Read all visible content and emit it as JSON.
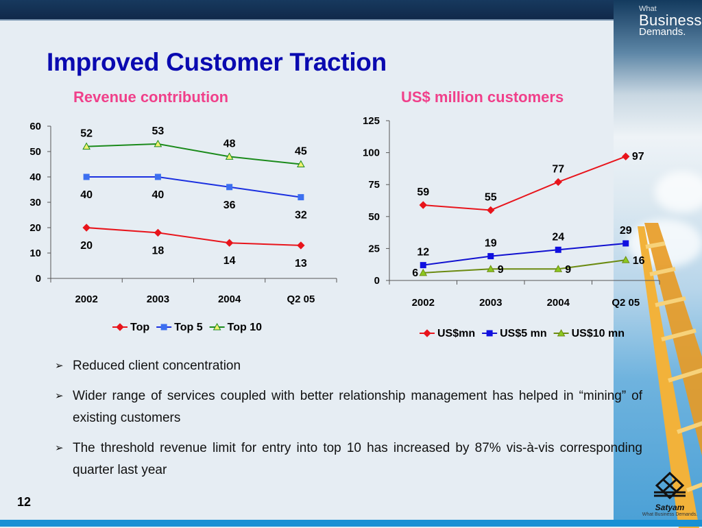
{
  "slide": {
    "title": "Improved  Customer Traction",
    "page_number": "12",
    "brand": {
      "line1": "What",
      "line2": "Business",
      "line3": "Demands."
    },
    "logo": {
      "name": "Satyam",
      "tagline": "What Business Demands."
    },
    "bullets": [
      "Reduced client concentration",
      "Wider range of services coupled with better relationship management has helped in “mining” of existing customers",
      "The threshold revenue limit for entry into top 10 has increased by 87% vis-à-vis corresponding quarter last year"
    ],
    "bullet_glyph": "➢"
  },
  "chart_data": [
    {
      "type": "line",
      "title": "Revenue contribution",
      "title_color": "#f0408a",
      "categories": [
        "2002",
        "2003",
        "2004",
        "Q2 05"
      ],
      "ylim": [
        0,
        60
      ],
      "yticks": [
        "0",
        "10",
        "20",
        "30",
        "40",
        "50",
        "60"
      ],
      "xlabel": "",
      "ylabel": "",
      "legend_position": "bottom",
      "grid": false,
      "series": [
        {
          "name": "Top",
          "values": [
            20,
            18,
            14,
            13
          ],
          "labels": [
            "20",
            "18",
            "14",
            "13"
          ],
          "color": "#e8141b",
          "marker": "diamond",
          "marker_fill": "#e8141b",
          "label_pos": "below"
        },
        {
          "name": "Top 5",
          "values": [
            40,
            40,
            36,
            32
          ],
          "labels": [
            "40",
            "40",
            "36",
            "32"
          ],
          "color": "#1a2fe0",
          "marker": "square",
          "marker_fill": "#3c6ff0",
          "label_pos": "below"
        },
        {
          "name": "Top 10",
          "values": [
            52,
            53,
            48,
            45
          ],
          "labels": [
            "52",
            "53",
            "48",
            "45"
          ],
          "color": "#1a8a1a",
          "marker": "triangle",
          "marker_fill": "#f0f070",
          "label_pos": "above"
        }
      ]
    },
    {
      "type": "line",
      "title": "US$ million customers",
      "title_color": "#f0408a",
      "categories": [
        "2002",
        "2003",
        "2004",
        "Q2 05"
      ],
      "ylim": [
        0,
        125
      ],
      "yticks": [
        "0",
        "25",
        "50",
        "75",
        "100",
        "125"
      ],
      "xlabel": "",
      "ylabel": "",
      "legend_position": "bottom",
      "grid": false,
      "series": [
        {
          "name": "US$mn",
          "values": [
            59,
            55,
            77,
            97
          ],
          "labels": [
            "59",
            "55",
            "77",
            "97"
          ],
          "color": "#e8141b",
          "marker": "diamond",
          "marker_fill": "#e8141b",
          "label_pos": "above"
        },
        {
          "name": "US$5 mn",
          "values": [
            12,
            19,
            24,
            29
          ],
          "labels": [
            "12",
            "19",
            "24",
            "29"
          ],
          "color": "#1010d0",
          "marker": "square",
          "marker_fill": "#1010e0",
          "label_pos": "above"
        },
        {
          "name": "US$10 mn",
          "values": [
            6,
            9,
            9,
            16
          ],
          "labels": [
            "6",
            "9",
            "9",
            "16"
          ],
          "color": "#6b8a10",
          "marker": "triangle",
          "marker_fill": "#8cc820",
          "label_pos": "right"
        }
      ]
    }
  ]
}
